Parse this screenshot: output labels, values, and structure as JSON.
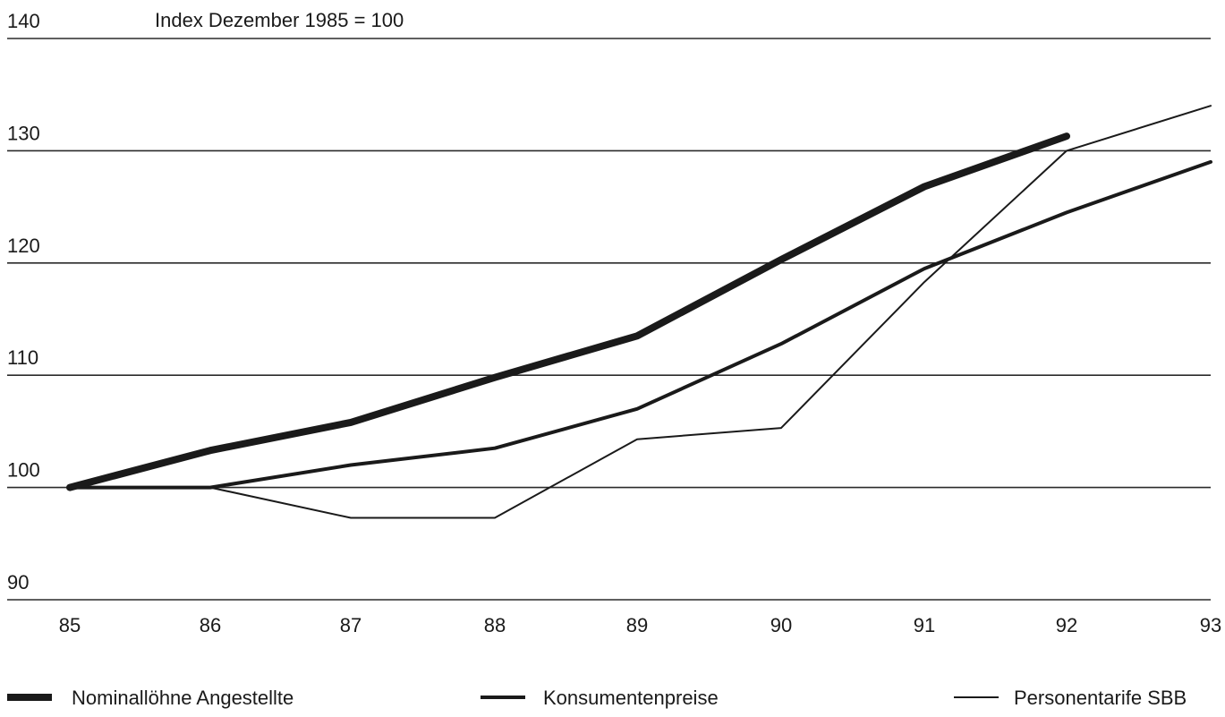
{
  "chart_data": {
    "type": "line",
    "annotation": "Index Dezember 1985 = 100",
    "x": [
      "85",
      "86",
      "87",
      "88",
      "89",
      "90",
      "91",
      "92",
      "93"
    ],
    "ylim": [
      90,
      140
    ],
    "yticks": [
      "90",
      "100",
      "110",
      "120",
      "130",
      "140"
    ],
    "grid": "horizontal",
    "legend_position": "bottom",
    "series": [
      {
        "name": "Nominallöhne Angestellte",
        "values": [
          100,
          103.3,
          105.8,
          109.8,
          113.5,
          120.3,
          126.8,
          131.3,
          null
        ],
        "color": "#1a1a1a"
      },
      {
        "name": "Konsumentenpreise",
        "values": [
          100,
          100,
          102,
          103.5,
          107,
          112.8,
          119.5,
          124.5,
          129
        ]
      },
      {
        "name": "Personentarife SBB",
        "values": [
          100,
          100,
          97.3,
          97.3,
          104.3,
          105.3,
          118.3,
          130,
          134
        ]
      }
    ]
  }
}
